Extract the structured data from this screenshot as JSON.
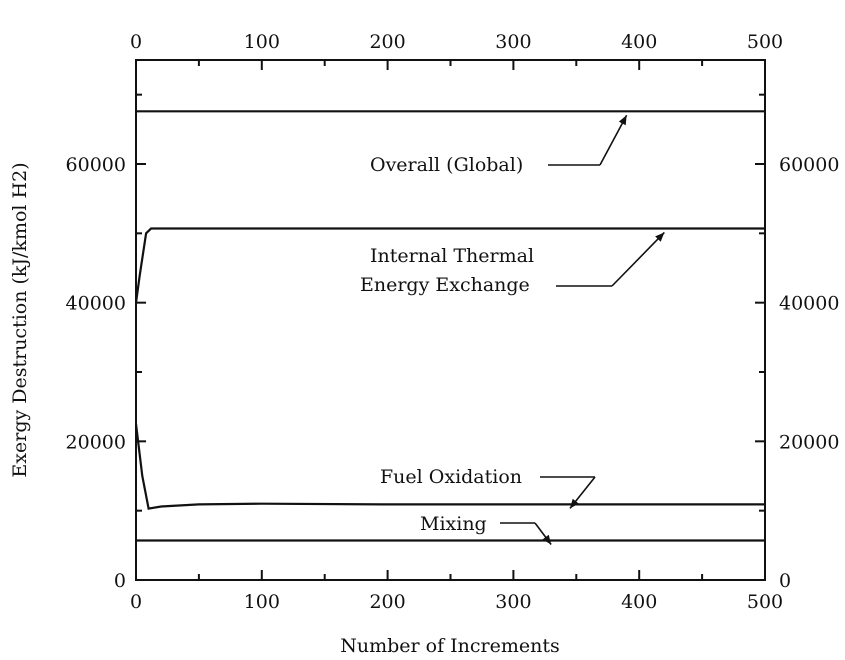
{
  "chart_data": {
    "type": "line",
    "title": "",
    "xlabel": "Number of Increments",
    "ylabel": "Exergy Destruction (kJ/kmol H2)",
    "xlim": [
      0,
      500
    ],
    "ylim": [
      0,
      75000
    ],
    "x_ticks": [
      0,
      100,
      200,
      300,
      400,
      500
    ],
    "x_tick_labels": [
      "0",
      "100",
      "200",
      "300",
      "400",
      "500"
    ],
    "y_ticks": [
      0,
      20000,
      40000,
      60000
    ],
    "y_tick_labels": [
      "0",
      "20000",
      "40000",
      "60000"
    ],
    "grid": false,
    "legend": "none",
    "series": [
      {
        "x": [
          0,
          10,
          50,
          100,
          200,
          300,
          400,
          500
        ],
        "y": [
          67600,
          67600,
          67600,
          67600,
          67600,
          67600,
          67600,
          67600
        ]
      },
      {
        "x": [
          0,
          3,
          8,
          12,
          50,
          100,
          200,
          300,
          400,
          500
        ],
        "y": [
          40000,
          44000,
          50000,
          50700,
          50700,
          50700,
          50700,
          50700,
          50700,
          50700
        ]
      },
      {
        "x": [
          0,
          5,
          10,
          20,
          50,
          100,
          200,
          300,
          400,
          500
        ],
        "y": [
          22500,
          15000,
          10300,
          10600,
          10900,
          11000,
          10900,
          10900,
          10900,
          10900
        ]
      },
      {
        "x": [
          0,
          100,
          200,
          300,
          400,
          500
        ],
        "y": [
          5700,
          5700,
          5700,
          5700,
          5700,
          5700
        ]
      }
    ],
    "annotations": [
      {
        "text": "Overall (Global)",
        "target": [
          390,
          67600
        ]
      },
      {
        "text": "Internal Thermal",
        "target": [
          420,
          50700
        ]
      },
      {
        "text": "Energy Exchange",
        "target": [
          420,
          50700
        ]
      },
      {
        "text": "Fuel Oxidation",
        "target": [
          345,
          10900
        ]
      },
      {
        "text": "Mixing",
        "target": [
          330,
          5700
        ]
      }
    ]
  }
}
